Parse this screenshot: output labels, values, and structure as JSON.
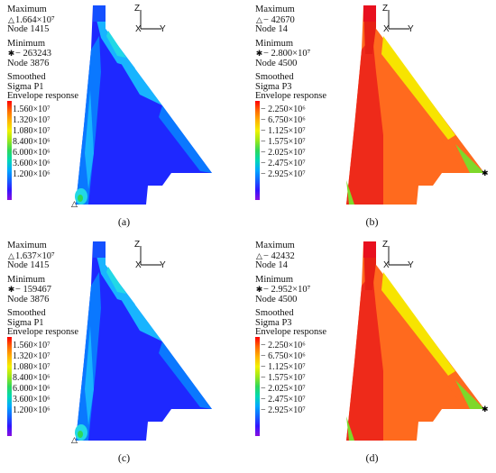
{
  "panels": [
    {
      "id": "a",
      "max_label": "Maximum",
      "max_symbol": "△",
      "max_value": "1.664×10⁷",
      "max_node": "Node 1415",
      "min_label": "Minimum",
      "min_symbol": "✱",
      "min_value": "− 263243",
      "min_node": "Node 3876",
      "result_lines": [
        "Smoothed",
        "Sigma P1",
        "Envelope response"
      ],
      "ticks": [
        "1.560×10⁷",
        "1.320×10⁷",
        "1.080×10⁷",
        "8.400×10⁶",
        "6.000×10⁶",
        "3.600×10⁶",
        "1.200×10⁶"
      ],
      "axes": {
        "z": "Z",
        "x": "X",
        "y": "Y"
      },
      "caption": "(a)",
      "scheme": "cool"
    },
    {
      "id": "b",
      "max_label": "Maximum",
      "max_symbol": "△",
      "max_value": "− 42670",
      "max_node": "Node 14",
      "min_label": "Minimum",
      "min_symbol": "✱",
      "min_value": "− 2.800×10⁷",
      "min_node": "Node 4500",
      "result_lines": [
        "Smoothed",
        "Sigma P3",
        "Envelope response"
      ],
      "ticks": [
        "− 2.250×10⁶",
        "− 6.750×10⁶",
        "− 1.125×10⁷",
        "− 1.575×10⁷",
        "− 2.025×10⁷",
        "− 2.475×10⁷",
        "− 2.925×10⁷"
      ],
      "axes": {
        "z": "Z",
        "x": "X",
        "y": "Y"
      },
      "caption": "(b)",
      "scheme": "hot"
    },
    {
      "id": "c",
      "max_label": "Maximum",
      "max_symbol": "△",
      "max_value": "1.637×10⁷",
      "max_node": "Node 1415",
      "min_label": "Minimum",
      "min_symbol": "✱",
      "min_value": "− 159467",
      "min_node": "Node 3876",
      "result_lines": [
        "Smoothed",
        "Sigma P1",
        "Envelope response"
      ],
      "ticks": [
        "1.560×10⁷",
        "1.320×10⁷",
        "1.080×10⁷",
        "8.400×10⁶",
        "6.000×10⁶",
        "3.600×10⁶",
        "1.200×10⁶"
      ],
      "axes": {
        "z": "Z",
        "x": "X",
        "y": "Y"
      },
      "caption": "(c)",
      "scheme": "cool"
    },
    {
      "id": "d",
      "max_label": "Maximum",
      "max_symbol": "△",
      "max_value": "− 42432",
      "max_node": "Node 14",
      "min_label": "Minimum",
      "min_symbol": "✱",
      "min_value": "− 2.952×10⁷",
      "min_node": "Node 4500",
      "result_lines": [
        "Smoothed",
        "Sigma P3",
        "Envelope response"
      ],
      "ticks": [
        "− 2.250×10⁶",
        "− 6.750×10⁶",
        "− 1.125×10⁷",
        "− 1.575×10⁷",
        "− 2.025×10⁷",
        "− 2.475×10⁷",
        "− 2.925×10⁷"
      ],
      "axes": {
        "z": "Z",
        "x": "X",
        "y": "Y"
      },
      "caption": "(d)",
      "scheme": "hot"
    }
  ],
  "legend_colors": [
    "#ff0000",
    "#ff6a00",
    "#ffb400",
    "#f2f200",
    "#9be81c",
    "#2ed85a",
    "#00d8b4",
    "#00a8ff",
    "#1464ff",
    "#3214ff",
    "#8a10e0"
  ],
  "schemes": {
    "cool": {
      "base": "#1e28ff",
      "mid": "#0a78ff",
      "light": "#18b4ff",
      "cyan": "#22d8e6",
      "green": "#2ed85a",
      "top": "#1450ff"
    },
    "hot": {
      "base": "#ff6a1e",
      "red": "#ee2a1a",
      "deep": "#e62014",
      "yellow": "#f7e400",
      "green": "#7ed82a",
      "top": "#e8101e"
    }
  }
}
